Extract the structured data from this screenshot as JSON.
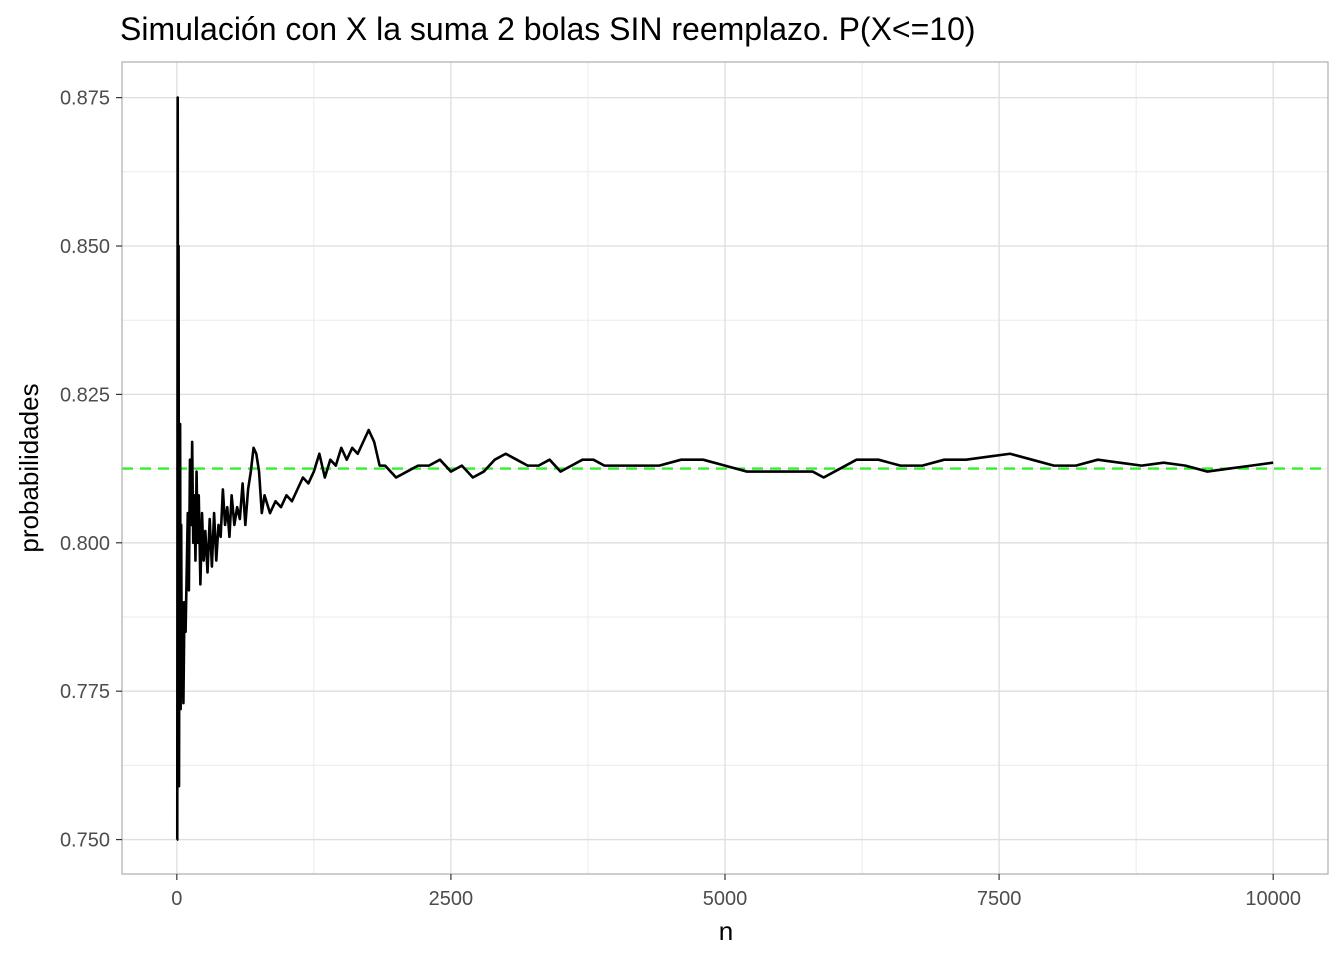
{
  "chart_data": {
    "type": "line",
    "title": "Simulación con X la suma 2 bolas SIN reemplazo. P(X<=10)",
    "xlabel": "n",
    "ylabel": "probabilidades",
    "xlim": [
      -500,
      10500
    ],
    "ylim": [
      0.7442,
      0.881
    ],
    "x_ticks": [
      0,
      2500,
      5000,
      7500,
      10000
    ],
    "x_tick_labels": [
      "0",
      "2500",
      "5000",
      "7500",
      "10000"
    ],
    "y_ticks": [
      0.75,
      0.775,
      0.8,
      0.825,
      0.85,
      0.875
    ],
    "y_tick_labels": [
      "0.750",
      "0.775",
      "0.800",
      "0.825",
      "0.850",
      "0.875"
    ],
    "grid": true,
    "legend": "none",
    "reference_line": {
      "y": 0.8125,
      "style": "dashed",
      "color": "#33ee33"
    },
    "series": [
      {
        "color": "#000000",
        "x": [
          1,
          4,
          8,
          12,
          16,
          20,
          25,
          30,
          35,
          40,
          45,
          50,
          55,
          60,
          70,
          80,
          90,
          100,
          110,
          120,
          130,
          140,
          150,
          160,
          170,
          180,
          190,
          200,
          215,
          230,
          245,
          260,
          280,
          300,
          320,
          340,
          360,
          380,
          400,
          420,
          440,
          460,
          480,
          500,
          525,
          550,
          575,
          600,
          625,
          650,
          675,
          700,
          725,
          750,
          775,
          800,
          850,
          900,
          950,
          1000,
          1050,
          1100,
          1150,
          1200,
          1250,
          1300,
          1350,
          1400,
          1450,
          1500,
          1550,
          1600,
          1650,
          1700,
          1750,
          1800,
          1850,
          1900,
          1950,
          2000,
          2100,
          2200,
          2300,
          2400,
          2500,
          2600,
          2700,
          2800,
          2900,
          3000,
          3100,
          3200,
          3300,
          3400,
          3500,
          3600,
          3700,
          3800,
          3900,
          4000,
          4200,
          4400,
          4600,
          4800,
          5000,
          5200,
          5400,
          5600,
          5800,
          5900,
          6000,
          6200,
          6400,
          6600,
          6800,
          7000,
          7200,
          7400,
          7600,
          7800,
          8000,
          8200,
          8400,
          8600,
          8800,
          9000,
          9200,
          9400,
          9600,
          9800,
          10000
        ],
        "values": [
          0.75,
          0.75,
          0.875,
          0.8,
          0.85,
          0.759,
          0.808,
          0.82,
          0.772,
          0.803,
          0.776,
          0.79,
          0.78,
          0.773,
          0.79,
          0.785,
          0.795,
          0.805,
          0.792,
          0.814,
          0.803,
          0.817,
          0.8,
          0.808,
          0.797,
          0.812,
          0.8,
          0.808,
          0.793,
          0.805,
          0.797,
          0.802,
          0.795,
          0.804,
          0.796,
          0.805,
          0.797,
          0.803,
          0.801,
          0.809,
          0.803,
          0.806,
          0.801,
          0.808,
          0.803,
          0.806,
          0.804,
          0.81,
          0.803,
          0.809,
          0.812,
          0.816,
          0.815,
          0.812,
          0.805,
          0.808,
          0.805,
          0.807,
          0.806,
          0.808,
          0.807,
          0.809,
          0.811,
          0.81,
          0.812,
          0.815,
          0.811,
          0.814,
          0.813,
          0.816,
          0.814,
          0.816,
          0.815,
          0.817,
          0.819,
          0.817,
          0.813,
          0.813,
          0.812,
          0.811,
          0.812,
          0.813,
          0.813,
          0.814,
          0.812,
          0.813,
          0.811,
          0.812,
          0.814,
          0.815,
          0.814,
          0.813,
          0.813,
          0.814,
          0.812,
          0.813,
          0.814,
          0.814,
          0.813,
          0.813,
          0.813,
          0.813,
          0.814,
          0.814,
          0.813,
          0.812,
          0.812,
          0.812,
          0.812,
          0.811,
          0.812,
          0.814,
          0.814,
          0.813,
          0.813,
          0.814,
          0.814,
          0.8145,
          0.815,
          0.814,
          0.813,
          0.813,
          0.814,
          0.8135,
          0.813,
          0.8135,
          0.813,
          0.812,
          0.8125,
          0.813,
          0.8135
        ]
      }
    ]
  }
}
